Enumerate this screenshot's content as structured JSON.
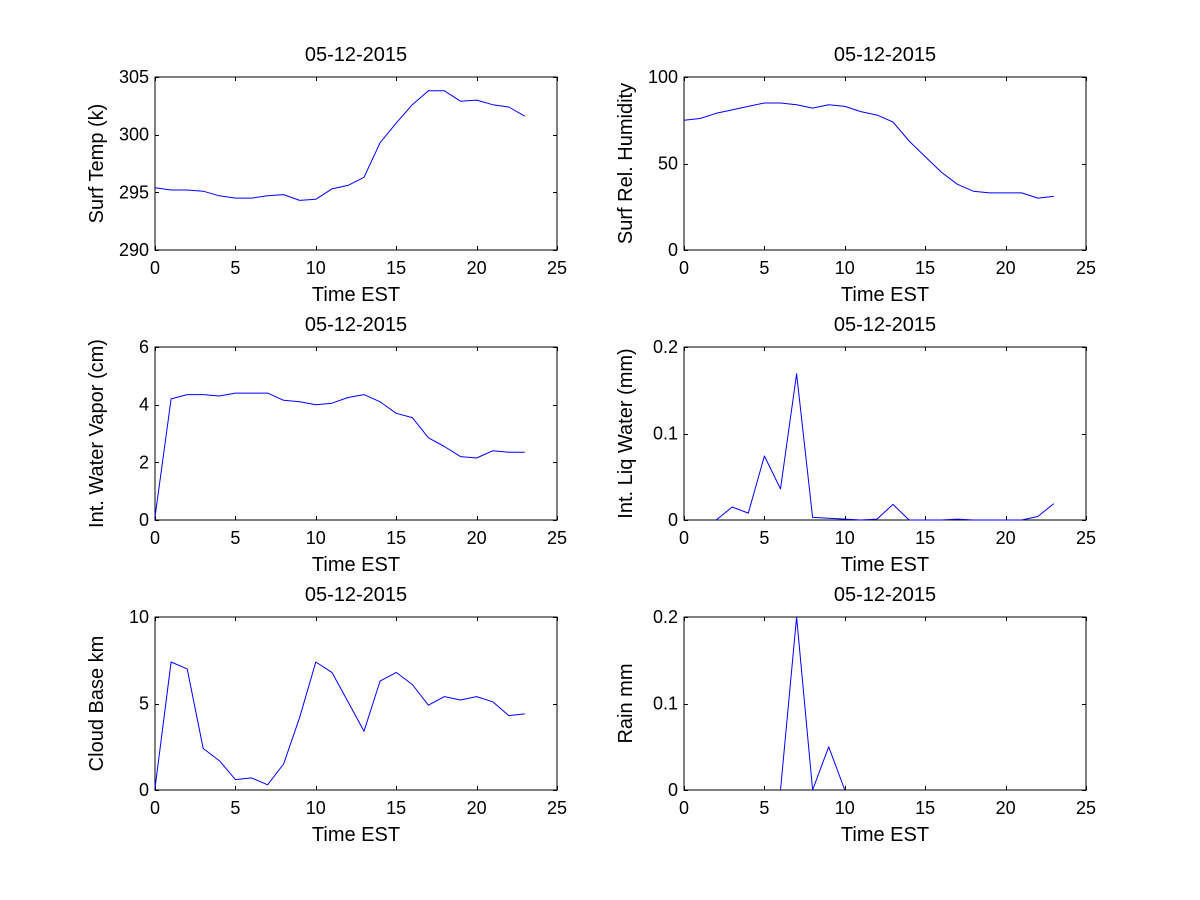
{
  "figure": {
    "line_color": "#0000ff",
    "background": "#ffffff"
  },
  "chart_data": [
    {
      "type": "line",
      "title": "05-12-2015",
      "xlabel": "Time EST",
      "ylabel": "Surf Temp (k)",
      "xlim": [
        0,
        25
      ],
      "ylim": [
        290,
        305
      ],
      "xticks": [
        0,
        5,
        10,
        15,
        20,
        25
      ],
      "yticks": [
        290,
        295,
        300,
        305
      ],
      "x": [
        0,
        1,
        2,
        3,
        4,
        5,
        6,
        7,
        8,
        9,
        10,
        11,
        12,
        13,
        14,
        15,
        16,
        17,
        18,
        19,
        20,
        21,
        22,
        23
      ],
      "values": [
        295.4,
        295.2,
        295.2,
        295.1,
        294.7,
        294.5,
        294.5,
        294.7,
        294.8,
        294.3,
        294.4,
        295.3,
        295.6,
        296.3,
        299.3,
        301.0,
        302.6,
        303.8,
        303.8,
        302.9,
        303.0,
        302.6,
        302.4,
        301.6
      ]
    },
    {
      "type": "line",
      "title": "05-12-2015",
      "xlabel": "Time EST",
      "ylabel": "Surf Rel. Humidity",
      "xlim": [
        0,
        25
      ],
      "ylim": [
        0,
        100
      ],
      "xticks": [
        0,
        5,
        10,
        15,
        20,
        25
      ],
      "yticks": [
        0,
        50,
        100
      ],
      "x": [
        0,
        1,
        2,
        3,
        4,
        5,
        6,
        7,
        8,
        9,
        10,
        11,
        12,
        13,
        14,
        15,
        16,
        17,
        18,
        19,
        20,
        21,
        22,
        23
      ],
      "values": [
        75,
        76,
        79,
        81,
        83,
        85,
        85,
        84,
        82,
        84,
        83,
        80,
        78,
        74,
        63,
        54,
        45,
        38,
        34,
        33,
        33,
        33,
        30,
        31
      ]
    },
    {
      "type": "line",
      "title": "05-12-2015",
      "xlabel": "Time EST",
      "ylabel": "Int. Water Vapor (cm)",
      "xlim": [
        0,
        25
      ],
      "ylim": [
        0,
        6
      ],
      "xticks": [
        0,
        5,
        10,
        15,
        20,
        25
      ],
      "yticks": [
        0,
        2,
        4,
        6
      ],
      "x": [
        0,
        1,
        2,
        3,
        4,
        5,
        6,
        7,
        8,
        9,
        10,
        11,
        12,
        13,
        14,
        15,
        16,
        17,
        18,
        19,
        20,
        21,
        22,
        23
      ],
      "values": [
        0.1,
        4.2,
        4.35,
        4.35,
        4.3,
        4.4,
        4.4,
        4.4,
        4.15,
        4.1,
        4.0,
        4.05,
        4.25,
        4.35,
        4.1,
        3.7,
        3.55,
        2.85,
        2.55,
        2.2,
        2.15,
        2.4,
        2.35,
        2.35
      ]
    },
    {
      "type": "line",
      "title": "05-12-2015",
      "xlabel": "Time EST",
      "ylabel": "Int. Liq Water (mm)",
      "xlim": [
        0,
        25
      ],
      "ylim": [
        0,
        0.2
      ],
      "xticks": [
        0,
        5,
        10,
        15,
        20,
        25
      ],
      "yticks": [
        0,
        0.1,
        0.2
      ],
      "x": [
        2,
        3,
        4,
        5,
        6,
        7,
        8,
        9,
        10,
        11,
        12,
        13,
        14,
        15,
        16,
        17,
        18,
        19,
        20,
        21,
        22,
        23
      ],
      "values": [
        0,
        0.015,
        0.008,
        0.074,
        0.036,
        0.169,
        0.003,
        0.002,
        0.001,
        0,
        0.001,
        0.018,
        0,
        0,
        0,
        0.001,
        0,
        0,
        0,
        0,
        0.004,
        0.019
      ]
    },
    {
      "type": "line",
      "title": "05-12-2015",
      "xlabel": "Time EST",
      "ylabel": "Cloud Base km",
      "xlim": [
        0,
        25
      ],
      "ylim": [
        0,
        10
      ],
      "xticks": [
        0,
        5,
        10,
        15,
        20,
        25
      ],
      "yticks": [
        0,
        5,
        10
      ],
      "x": [
        0,
        1,
        2,
        3,
        4,
        5,
        6,
        7,
        8,
        9,
        10,
        11,
        12,
        13,
        14,
        15,
        16,
        17,
        18,
        19,
        20,
        21,
        22,
        23
      ],
      "values": [
        0.1,
        7.4,
        7.0,
        2.4,
        1.7,
        0.6,
        0.7,
        0.3,
        1.5,
        4.2,
        7.4,
        6.8,
        5.1,
        3.4,
        6.3,
        6.8,
        6.1,
        4.9,
        5.4,
        5.2,
        5.4,
        5.1,
        4.3,
        4.4
      ]
    },
    {
      "type": "line",
      "title": "05-12-2015",
      "xlabel": "Time EST",
      "ylabel": "Rain mm",
      "xlim": [
        0,
        25
      ],
      "ylim": [
        0,
        0.2
      ],
      "xticks": [
        0,
        5,
        10,
        15,
        20,
        25
      ],
      "yticks": [
        0,
        0.1,
        0.2
      ],
      "x": [
        6,
        7,
        8,
        9,
        10
      ],
      "values": [
        0,
        0.2,
        0,
        0.05,
        0
      ]
    }
  ]
}
